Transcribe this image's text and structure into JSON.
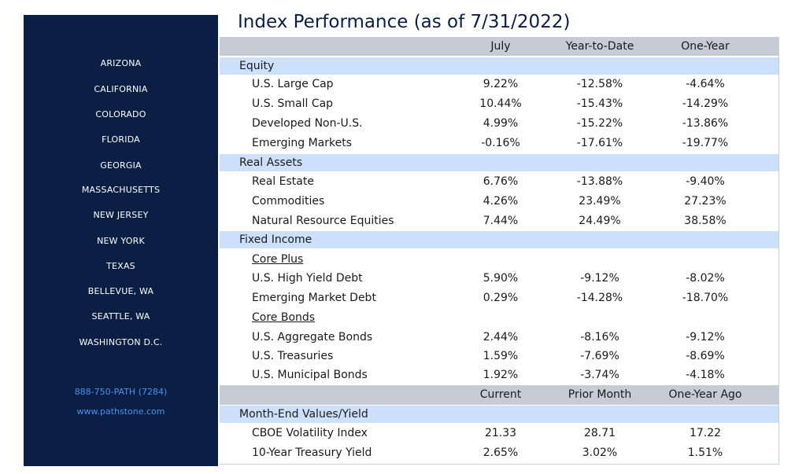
{
  "title": "Index Performance (as of 7/31/2022)",
  "sidebar": {
    "locations": [
      "ARIZONA",
      "CALIFORNIA",
      "COLORADO",
      "FLORIDA",
      "GEORGIA",
      "MASSACHUSETTS",
      "NEW JERSEY",
      "NEW YORK",
      "TEXAS",
      "BELLEVUE, WA",
      "SEATTLE, WA",
      "WASHINGTON D.C."
    ],
    "phone": "888-750-PATH (7284)",
    "website": "www.pathstone.com"
  },
  "performance": {
    "headers": [
      "July",
      "Year-to-Date",
      "One-Year"
    ],
    "groups": [
      {
        "name": "Equity",
        "rows": [
          {
            "label": "U.S. Large Cap",
            "values": [
              "9.22%",
              "-12.58%",
              "-4.64%"
            ]
          },
          {
            "label": "U.S. Small Cap",
            "values": [
              "10.44%",
              "-15.43%",
              "-14.29%"
            ]
          },
          {
            "label": "Developed Non-U.S.",
            "values": [
              "4.99%",
              "-15.22%",
              "-13.86%"
            ]
          },
          {
            "label": "Emerging Markets",
            "values": [
              "-0.16%",
              "-17.61%",
              "-19.77%"
            ]
          }
        ]
      },
      {
        "name": "Real Assets",
        "rows": [
          {
            "label": "Real Estate",
            "values": [
              "6.76%",
              "-13.88%",
              "-9.40%"
            ]
          },
          {
            "label": "Commodities",
            "values": [
              "4.26%",
              "23.49%",
              "27.23%"
            ]
          },
          {
            "label": "Natural Resource Equities",
            "values": [
              "7.44%",
              "24.49%",
              "38.58%"
            ]
          }
        ]
      },
      {
        "name": "Fixed Income",
        "rows": [
          {
            "subheading": "Core Plus"
          },
          {
            "label": "U.S. High Yield Debt",
            "values": [
              "5.90%",
              "-9.12%",
              "-8.02%"
            ]
          },
          {
            "label": "Emerging Market Debt",
            "values": [
              "0.29%",
              "-14.28%",
              "-18.70%"
            ]
          },
          {
            "subheading": "Core Bonds"
          },
          {
            "label": "U.S. Aggregate Bonds",
            "values": [
              "2.44%",
              "-8.16%",
              "-9.12%"
            ]
          },
          {
            "label": "U.S. Treasuries",
            "values": [
              "1.59%",
              "-7.69%",
              "-8.69%"
            ]
          },
          {
            "label": "U.S. Municipal Bonds",
            "values": [
              "1.92%",
              "-3.74%",
              "-4.18%"
            ]
          }
        ]
      }
    ]
  },
  "values_yield": {
    "headers": [
      "Current",
      "Prior Month",
      "One-Year Ago"
    ],
    "section": "Month-End Values/Yield",
    "rows": [
      {
        "label": "CBOE Volatility Index",
        "values": [
          "21.33",
          "28.71",
          "17.22"
        ]
      },
      {
        "label": "10-Year Treasury Yield",
        "values": [
          "2.65%",
          "3.02%",
          "1.51%"
        ]
      }
    ]
  },
  "colors": {
    "sidebar_bg": "#0b1f45",
    "sidebar_link": "#4f8ff0",
    "header_bg": "#c6ccd6",
    "section_bg": "#cde0fb",
    "title": "#0b1f45"
  }
}
